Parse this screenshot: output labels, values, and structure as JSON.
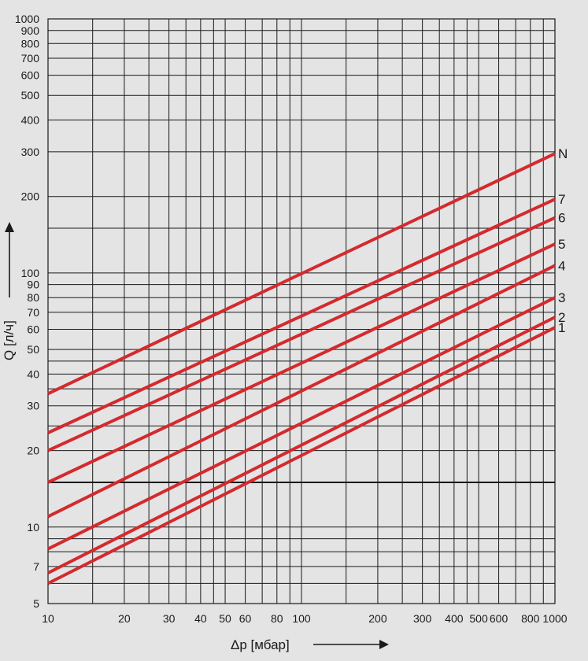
{
  "chart_data": {
    "type": "line",
    "x_scale": "log",
    "y_scale": "log",
    "xlim": [
      10,
      1000
    ],
    "ylim": [
      5,
      1000
    ],
    "grid": true,
    "xlabel": "Δp [мбар]",
    "ylabel": "Q [л/ч]",
    "x_tick_labels": [
      {
        "value": 10,
        "label": "10"
      },
      {
        "value": 20,
        "label": "20"
      },
      {
        "value": 30,
        "label": "30"
      },
      {
        "value": 40,
        "label": "40"
      },
      {
        "value": 50,
        "label": "50"
      },
      {
        "value": 60,
        "label": "60"
      },
      {
        "value": 80,
        "label": "80"
      },
      {
        "value": 100,
        "label": "100"
      },
      {
        "value": 200,
        "label": "200"
      },
      {
        "value": 300,
        "label": "300"
      },
      {
        "value": 400,
        "label": "400"
      },
      {
        "value": 500,
        "label": "500"
      },
      {
        "value": 600,
        "label": "600"
      },
      {
        "value": 800,
        "label": "800"
      },
      {
        "value": 1000,
        "label": "1000"
      }
    ],
    "y_tick_labels": [
      {
        "value": 5,
        "label": "5"
      },
      {
        "value": 7,
        "label": "7"
      },
      {
        "value": 10,
        "label": "10"
      },
      {
        "value": 20,
        "label": "20"
      },
      {
        "value": 30,
        "label": "30"
      },
      {
        "value": 40,
        "label": "40"
      },
      {
        "value": 50,
        "label": "50"
      },
      {
        "value": 60,
        "label": "60"
      },
      {
        "value": 70,
        "label": "70"
      },
      {
        "value": 80,
        "label": "80"
      },
      {
        "value": 90,
        "label": "90"
      },
      {
        "value": 100,
        "label": "100"
      },
      {
        "value": 200,
        "label": "200"
      },
      {
        "value": 300,
        "label": "300"
      },
      {
        "value": 400,
        "label": "400"
      },
      {
        "value": 500,
        "label": "500"
      },
      {
        "value": 600,
        "label": "600"
      },
      {
        "value": 700,
        "label": "700"
      },
      {
        "value": 800,
        "label": "800"
      },
      {
        "value": 900,
        "label": "900"
      },
      {
        "value": 1000,
        "label": "1000"
      }
    ],
    "x_grid_values": [
      10,
      15,
      20,
      25,
      30,
      35,
      40,
      45,
      50,
      60,
      70,
      80,
      90,
      100,
      150,
      200,
      250,
      300,
      350,
      400,
      450,
      500,
      600,
      700,
      800,
      900,
      1000
    ],
    "y_grid_values": [
      5,
      6,
      7,
      8,
      9,
      10,
      15,
      20,
      25,
      30,
      35,
      40,
      45,
      50,
      60,
      70,
      80,
      90,
      100,
      150,
      200,
      300,
      400,
      500,
      600,
      700,
      800,
      900,
      1000
    ],
    "reference_line_y": 15,
    "series": [
      {
        "name": "N",
        "x": [
          10,
          1000
        ],
        "y": [
          33.5,
          295
        ]
      },
      {
        "name": "7",
        "x": [
          10,
          1000
        ],
        "y": [
          23.5,
          195
        ]
      },
      {
        "name": "6",
        "x": [
          10,
          1000
        ],
        "y": [
          20,
          165
        ]
      },
      {
        "name": "5",
        "x": [
          10,
          1000
        ],
        "y": [
          15,
          130
        ]
      },
      {
        "name": "4",
        "x": [
          10,
          1000
        ],
        "y": [
          11,
          107
        ]
      },
      {
        "name": "3",
        "x": [
          10,
          1000
        ],
        "y": [
          8.2,
          80
        ]
      },
      {
        "name": "2",
        "x": [
          10,
          1000
        ],
        "y": [
          6.6,
          67
        ]
      },
      {
        "name": "1",
        "x": [
          10,
          1000
        ],
        "y": [
          6.0,
          61
        ]
      }
    ],
    "colors": {
      "background": "#e4e4e5",
      "grid": "#1a1a1a",
      "series": "#d42a2e",
      "text": "#1a1a1a"
    }
  }
}
